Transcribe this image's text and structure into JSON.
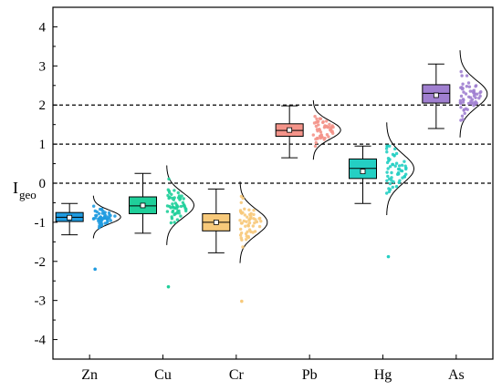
{
  "chart_data": {
    "type": "box",
    "ylabel": "I",
    "ylabel_subscript": "geo",
    "ylim": [
      -4.5,
      4.5
    ],
    "yticks": [
      -4,
      -3,
      -2,
      -1,
      0,
      1,
      2,
      3,
      4
    ],
    "reference_lines": [
      0,
      1,
      2
    ],
    "grid": false,
    "categories": [
      "Zn",
      "Cu",
      "Cr",
      "Pb",
      "Hg",
      "As"
    ],
    "series": [
      {
        "label": "Zn",
        "color": "#1f9be0",
        "whisker_low": -1.32,
        "q1": -0.98,
        "median": -0.87,
        "q3": -0.75,
        "whisker_high": -0.52,
        "mean": -0.88,
        "outliers": [
          -2.2
        ]
      },
      {
        "label": "Cu",
        "color": "#1fcf9a",
        "whisker_low": -1.28,
        "q1": -0.78,
        "median": -0.58,
        "q3": -0.35,
        "whisker_high": 0.25,
        "mean": -0.57,
        "outliers": [
          -2.65
        ]
      },
      {
        "label": "Cr",
        "color": "#f7c97a",
        "whisker_low": -1.78,
        "q1": -1.22,
        "median": -1.0,
        "q3": -0.78,
        "whisker_high": -0.15,
        "mean": -1.0,
        "outliers": [
          -3.02
        ]
      },
      {
        "label": "Pb",
        "color": "#f4948a",
        "whisker_low": 0.65,
        "q1": 1.2,
        "median": 1.35,
        "q3": 1.52,
        "whisker_high": 1.98,
        "mean": 1.36,
        "outliers": []
      },
      {
        "label": "Hg",
        "color": "#24cfc3",
        "whisker_low": -0.52,
        "q1": 0.12,
        "median": 0.38,
        "q3": 0.62,
        "whisker_high": 0.95,
        "mean": 0.3,
        "outliers": [
          -1.88
        ]
      },
      {
        "label": "As",
        "color": "#a07fd0",
        "whisker_low": 1.4,
        "q1": 2.05,
        "median": 2.3,
        "q3": 2.52,
        "whisker_high": 3.05,
        "mean": 2.25,
        "outliers": []
      }
    ]
  }
}
